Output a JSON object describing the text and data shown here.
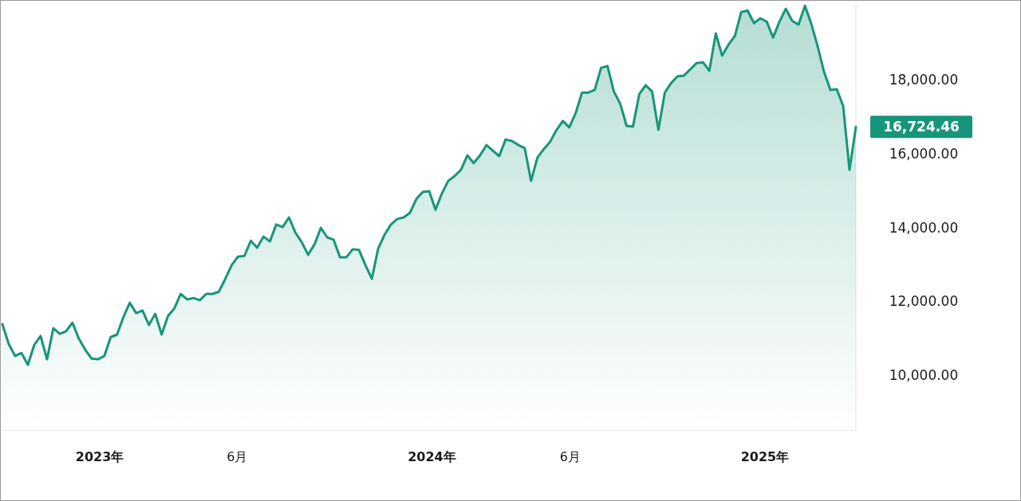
{
  "chart_data": {
    "type": "area",
    "x": [
      "2022-09-16",
      "2022-09-23",
      "2022-09-30",
      "2022-10-07",
      "2022-10-14",
      "2022-10-21",
      "2022-10-28",
      "2022-11-04",
      "2022-11-11",
      "2022-11-18",
      "2022-11-25",
      "2022-12-02",
      "2022-12-09",
      "2022-12-16",
      "2022-12-23",
      "2022-12-30",
      "2023-01-06",
      "2023-01-13",
      "2023-01-20",
      "2023-01-27",
      "2023-02-03",
      "2023-02-10",
      "2023-02-17",
      "2023-02-24",
      "2023-03-03",
      "2023-03-10",
      "2023-03-17",
      "2023-03-24",
      "2023-03-31",
      "2023-04-07",
      "2023-04-14",
      "2023-04-21",
      "2023-04-28",
      "2023-05-05",
      "2023-05-12",
      "2023-05-19",
      "2023-05-26",
      "2023-06-02",
      "2023-06-09",
      "2023-06-16",
      "2023-06-23",
      "2023-06-30",
      "2023-07-07",
      "2023-07-14",
      "2023-07-21",
      "2023-07-28",
      "2023-08-04",
      "2023-08-11",
      "2023-08-18",
      "2023-08-25",
      "2023-09-01",
      "2023-09-08",
      "2023-09-15",
      "2023-09-22",
      "2023-09-29",
      "2023-10-06",
      "2023-10-13",
      "2023-10-20",
      "2023-10-27",
      "2023-11-03",
      "2023-11-10",
      "2023-11-17",
      "2023-11-24",
      "2023-12-01",
      "2023-12-08",
      "2023-12-15",
      "2023-12-22",
      "2023-12-29",
      "2024-01-05",
      "2024-01-12",
      "2024-01-19",
      "2024-01-26",
      "2024-02-02",
      "2024-02-09",
      "2024-02-16",
      "2024-02-23",
      "2024-03-01",
      "2024-03-08",
      "2024-03-15",
      "2024-03-22",
      "2024-03-29",
      "2024-04-05",
      "2024-04-12",
      "2024-04-19",
      "2024-04-26",
      "2024-05-03",
      "2024-05-10",
      "2024-05-17",
      "2024-05-24",
      "2024-05-31",
      "2024-06-07",
      "2024-06-14",
      "2024-06-21",
      "2024-06-28",
      "2024-07-05",
      "2024-07-12",
      "2024-07-19",
      "2024-07-26",
      "2024-08-02",
      "2024-08-09",
      "2024-08-16",
      "2024-08-23",
      "2024-08-30",
      "2024-09-06",
      "2024-09-13",
      "2024-09-20",
      "2024-09-27",
      "2024-10-04",
      "2024-10-11",
      "2024-10-18",
      "2024-10-25",
      "2024-11-01",
      "2024-11-08",
      "2024-11-15",
      "2024-11-22",
      "2024-11-29",
      "2024-12-06",
      "2024-12-13",
      "2024-12-20",
      "2024-12-27",
      "2025-01-03",
      "2025-01-10",
      "2025-01-17",
      "2025-01-24",
      "2025-01-31",
      "2025-02-07",
      "2025-02-14",
      "2025-02-21",
      "2025-02-28",
      "2025-03-07",
      "2025-03-14",
      "2025-03-21",
      "2025-03-28",
      "2025-04-04",
      "2025-04-11"
    ],
    "series": [
      {
        "color": "#17957a",
        "values": [
          11380,
          10840,
          10520,
          10600,
          10280,
          10820,
          11060,
          10430,
          11270,
          11120,
          11190,
          11420,
          10990,
          10690,
          10450,
          10430,
          10520,
          11030,
          11100,
          11570,
          11960,
          11680,
          11750,
          11360,
          11660,
          11100,
          11600,
          11810,
          12200,
          12050,
          12090,
          12030,
          12200,
          12200,
          12260,
          12610,
          12980,
          13210,
          13230,
          13640,
          13450,
          13750,
          13620,
          14080,
          14010,
          14270,
          13860,
          13600,
          13260,
          13540,
          13990,
          13730,
          13670,
          13190,
          13190,
          13410,
          13390,
          12980,
          12610,
          13430,
          13800,
          14080,
          14230,
          14270,
          14400,
          14770,
          14960,
          14980,
          14480,
          14920,
          15260,
          15390,
          15560,
          15950,
          15740,
          15950,
          16230,
          16080,
          15930,
          16380,
          16340,
          16230,
          16150,
          15260,
          15890,
          16120,
          16320,
          16640,
          16880,
          16710,
          17090,
          17650,
          17650,
          17720,
          18320,
          18370,
          17680,
          17350,
          16750,
          16730,
          17610,
          17850,
          17680,
          16640,
          17650,
          17910,
          18090,
          18110,
          18280,
          18450,
          18470,
          18240,
          19250,
          18650,
          18950,
          19180,
          19830,
          19870,
          19530,
          19660,
          19570,
          19140,
          19570,
          19920,
          19590,
          19490,
          20000,
          19510,
          18900,
          18210,
          17720,
          17740,
          17290,
          15560,
          16724.46
        ]
      }
    ],
    "xlim": [
      "2022-09-16",
      "2025-04-11"
    ],
    "ylim": [
      8500,
      20100
    ],
    "xticks": [
      {
        "value": "2023-01-01",
        "label": "2023年"
      },
      {
        "value": "2023-06-01",
        "label": "6月"
      },
      {
        "value": "2024-01-01",
        "label": "2024年"
      },
      {
        "value": "2024-06-01",
        "label": "6月"
      },
      {
        "value": "2025-01-01",
        "label": "2025年"
      }
    ],
    "yticks": [
      {
        "value": 10000,
        "label": "10,000.00"
      },
      {
        "value": 12000,
        "label": "12,000.00"
      },
      {
        "value": 14000,
        "label": "14,000.00"
      },
      {
        "value": 16000,
        "label": "16,000.00"
      },
      {
        "value": 18000,
        "label": "18,000.00"
      }
    ],
    "annotations": [
      {
        "text": "16,724.46",
        "x": "2025-04-11",
        "y": 16724.46
      }
    ]
  }
}
